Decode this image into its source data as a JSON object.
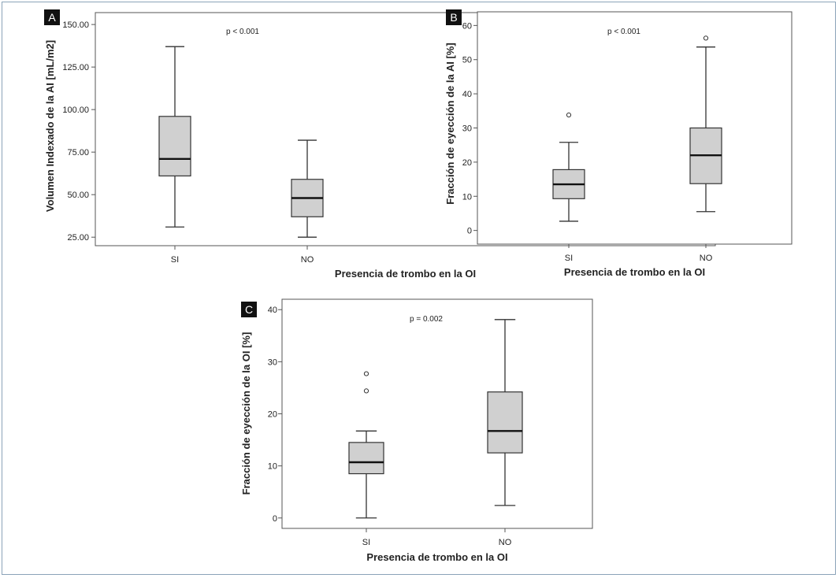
{
  "chart_data": [
    {
      "id": "A",
      "type": "box",
      "panel_label": "A",
      "annotation": "p < 0.001",
      "xlabel": "Presencia de trombo en la OI",
      "ylabel": "Volumen Indexado de la AI [mL/m2]",
      "ylim": [
        20,
        157
      ],
      "yticks": [
        "150.00",
        "125.00",
        "100.00",
        "75.00",
        "50.00",
        "25.00"
      ],
      "ytick_values": [
        150,
        125,
        100,
        75,
        50,
        25
      ],
      "categories": [
        "SI",
        "NO"
      ],
      "boxes": [
        {
          "min": 31,
          "q1": 61,
          "median": 71,
          "q3": 96,
          "max": 137,
          "outliers": []
        },
        {
          "min": 25,
          "q1": 37,
          "median": 48,
          "q3": 59,
          "max": 82,
          "outliers": []
        }
      ]
    },
    {
      "id": "B",
      "type": "box",
      "panel_label": "B",
      "annotation": "p < 0.001",
      "xlabel": "Presencia de trombo en la OI",
      "ylabel": "Fracción de eyección de la AI [%]",
      "ylim": [
        -4,
        64
      ],
      "yticks": [
        "60",
        "50",
        "40",
        "30",
        "20",
        "10",
        "0"
      ],
      "ytick_values": [
        60,
        50,
        40,
        30,
        20,
        10,
        0
      ],
      "categories": [
        "SI",
        "NO"
      ],
      "boxes": [
        {
          "min": 2.7,
          "q1": 9.3,
          "median": 13.5,
          "q3": 17.8,
          "max": 25.8,
          "outliers": [
            33.8
          ]
        },
        {
          "min": 5.5,
          "q1": 13.7,
          "median": 22.0,
          "q3": 30.0,
          "max": 53.7,
          "outliers": [
            56.3
          ]
        }
      ]
    },
    {
      "id": "C",
      "type": "box",
      "panel_label": "C",
      "annotation": "p = 0.002",
      "xlabel": "Presencia de trombo en la OI",
      "ylabel": "Fracción de eyección de la OI [%]",
      "ylim": [
        -2,
        42
      ],
      "yticks": [
        "40",
        "30",
        "20",
        "10",
        "0"
      ],
      "ytick_values": [
        40,
        30,
        20,
        10,
        0
      ],
      "categories": [
        "SI",
        "NO"
      ],
      "boxes": [
        {
          "min": 0,
          "q1": 8.5,
          "median": 10.7,
          "q3": 14.5,
          "max": 16.7,
          "outliers": [
            24.4,
            27.7
          ]
        },
        {
          "min": 2.4,
          "q1": 12.5,
          "median": 16.7,
          "q3": 24.2,
          "max": 38.1,
          "outliers": []
        }
      ]
    }
  ],
  "colors": {
    "box_fill": "#d0d0d0",
    "line": "#333333",
    "badge_bg": "#111111",
    "frame": "#8ba3b8"
  }
}
